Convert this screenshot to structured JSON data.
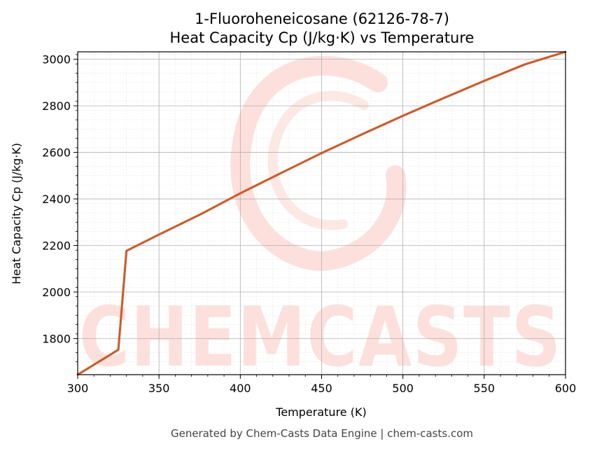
{
  "chart_data": {
    "type": "line",
    "title": "1-Fluoroheneicosane (62126-78-7)",
    "subtitle": "Heat Capacity Cp (J/kg·K) vs Temperature",
    "xlabel": "Temperature (K)",
    "ylabel": "Heat Capacity Cp (J/kg·K)",
    "xlim": [
      300,
      600
    ],
    "ylim": [
      1645,
      3032
    ],
    "x_ticks": [
      300,
      350,
      400,
      450,
      500,
      550,
      600
    ],
    "y_ticks": [
      1800,
      2000,
      2200,
      2400,
      2600,
      2800,
      3000
    ],
    "grid": true,
    "line_color": "#d9531e",
    "series": [
      {
        "x": [
          300,
          325,
          330,
          350,
          375,
          400,
          425,
          450,
          475,
          500,
          525,
          550,
          575,
          600
        ],
        "values": [
          1645,
          1752,
          2177,
          2247,
          2332,
          2424,
          2511,
          2597,
          2678,
          2757,
          2833,
          2907,
          2978,
          3032
        ]
      }
    ]
  },
  "watermark": {
    "text": "CHEMCASTS",
    "color": "#fde0dc"
  },
  "footer": "Generated by Chem-Casts Data Engine | chem-casts.com"
}
